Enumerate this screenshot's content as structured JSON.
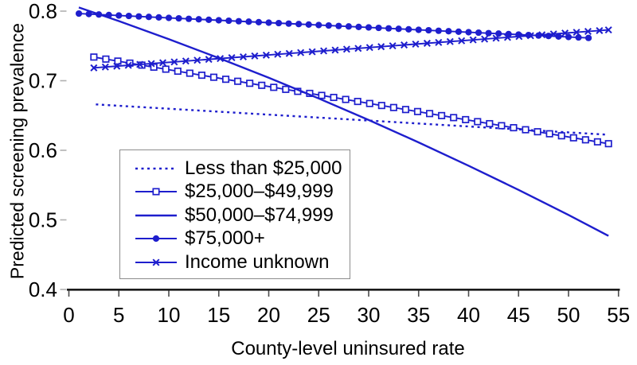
{
  "colors": {
    "series_blue": "#1e1ecd",
    "text": "#000000",
    "axis": "#1a1a1a",
    "x_tick": "#4d4d4d",
    "y_tick": "#b0b0b0",
    "legend_border": "#8c8c8c"
  },
  "chart_data": {
    "type": "line",
    "title": "",
    "xlabel": "County-level uninsured rate",
    "ylabel": "Predicted screening prevalence",
    "xlim": [
      0,
      55
    ],
    "ylim": [
      0.4,
      0.8
    ],
    "xticks": [
      0,
      5,
      10,
      15,
      20,
      25,
      30,
      35,
      40,
      45,
      50,
      55
    ],
    "xtick_labels": [
      "0",
      "5",
      "10",
      "15",
      "20",
      "25",
      "30",
      "35",
      "40",
      "45",
      "50",
      "55"
    ],
    "yticks": [
      0.4,
      0.5,
      0.6,
      0.7,
      0.8
    ],
    "ytick_labels": [
      "0.4",
      "0.5",
      "0.6",
      "0.7",
      "0.8"
    ],
    "grid": false,
    "legend_position": "inside-lower-left",
    "series": [
      {
        "name": "Less than $25,000",
        "style": "dotted",
        "marker": "none",
        "points": [
          [
            2.7,
            0.666
          ],
          [
            53.8,
            0.6225
          ]
        ]
      },
      {
        "name": "$25,000–$49,999",
        "style": "solid",
        "marker": "open-square",
        "marker_every": 1.2,
        "points": [
          [
            2.5,
            0.734
          ],
          [
            54,
            0.6095
          ]
        ]
      },
      {
        "name": "$50,000–$74,999",
        "style": "solid",
        "marker": "none",
        "points": [
          [
            1,
            0.8053
          ],
          [
            5,
            0.7857
          ],
          [
            10,
            0.7598
          ],
          [
            15,
            0.7326
          ],
          [
            20,
            0.7042
          ],
          [
            25,
            0.6745
          ],
          [
            30,
            0.6435
          ],
          [
            35,
            0.6113
          ],
          [
            40,
            0.5778
          ],
          [
            45,
            0.5431
          ],
          [
            50,
            0.5071
          ],
          [
            54,
            0.477
          ]
        ]
      },
      {
        "name": "$75,000+",
        "style": "solid",
        "marker": "filled-circle",
        "marker_every": 1.0,
        "points": [
          [
            1,
            0.7965
          ],
          [
            52,
            0.7615
          ]
        ]
      },
      {
        "name": "Income unknown",
        "style": "solid",
        "marker": "x-cross",
        "marker_every": 1.15,
        "points": [
          [
            2.5,
            0.7185
          ],
          [
            54,
            0.773
          ]
        ]
      }
    ]
  }
}
